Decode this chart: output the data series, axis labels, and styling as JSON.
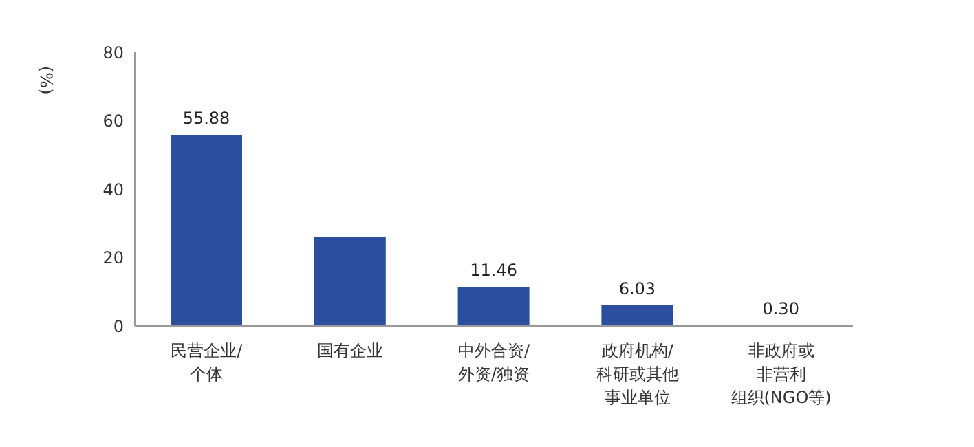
{
  "chart_data": {
    "type": "bar",
    "ylabel": "(%)",
    "categories": [
      "民营企业/个体",
      "国有企业",
      "中外合资/外资/独资",
      "政府机构/科研或其他事业单位",
      "非政府或非营利组织(NGO等)"
    ],
    "values": [
      55.88,
      26,
      11.46,
      6.03,
      0.3
    ],
    "value_labels": [
      "55.88",
      null,
      "11.46",
      "6.03",
      "0.30"
    ],
    "color": "#2b4e9e",
    "ylim": [
      0,
      80
    ],
    "yticks": [
      0,
      20,
      40,
      60,
      80
    ],
    "grid": false,
    "legend": false
  }
}
